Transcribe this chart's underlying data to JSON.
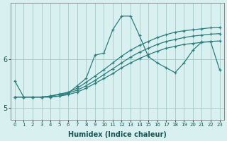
{
  "xlabel": "Humidex (Indice chaleur)",
  "x": [
    0,
    1,
    2,
    3,
    4,
    5,
    6,
    7,
    8,
    9,
    10,
    11,
    12,
    13,
    14,
    15,
    16,
    17,
    18,
    19,
    20,
    21,
    22,
    23
  ],
  "line_main": [
    5.55,
    5.22,
    5.22,
    5.22,
    5.22,
    5.24,
    5.3,
    5.45,
    5.6,
    6.08,
    6.12,
    6.6,
    6.88,
    6.88,
    6.48,
    6.05,
    5.92,
    5.82,
    5.72,
    5.92,
    6.18,
    6.35,
    6.35,
    5.78
  ],
  "reg1": [
    5.22,
    5.22,
    5.22,
    5.22,
    5.24,
    5.28,
    5.32,
    5.4,
    5.52,
    5.65,
    5.78,
    5.92,
    6.06,
    6.18,
    6.28,
    6.36,
    6.44,
    6.5,
    6.55,
    6.58,
    6.6,
    6.62,
    6.64,
    6.65
  ],
  "reg2": [
    5.22,
    5.22,
    5.22,
    5.22,
    5.24,
    5.27,
    5.3,
    5.36,
    5.45,
    5.56,
    5.68,
    5.8,
    5.92,
    6.04,
    6.14,
    6.22,
    6.3,
    6.36,
    6.4,
    6.44,
    6.47,
    6.49,
    6.51,
    6.52
  ],
  "reg3": [
    5.22,
    5.22,
    5.22,
    5.22,
    5.22,
    5.24,
    5.27,
    5.32,
    5.4,
    5.5,
    5.6,
    5.7,
    5.82,
    5.92,
    6.01,
    6.09,
    6.16,
    6.22,
    6.26,
    6.3,
    6.32,
    6.34,
    6.36,
    6.37
  ],
  "bg_color": "#d8f0f0",
  "grid_color": "#aacccc",
  "line_color": "#2d7d7d",
  "ylim": [
    4.75,
    7.15
  ],
  "yticks": [
    5,
    6
  ],
  "xticks": [
    0,
    1,
    2,
    3,
    4,
    5,
    6,
    7,
    8,
    9,
    10,
    11,
    12,
    13,
    14,
    15,
    16,
    17,
    18,
    19,
    20,
    21,
    22,
    23
  ]
}
